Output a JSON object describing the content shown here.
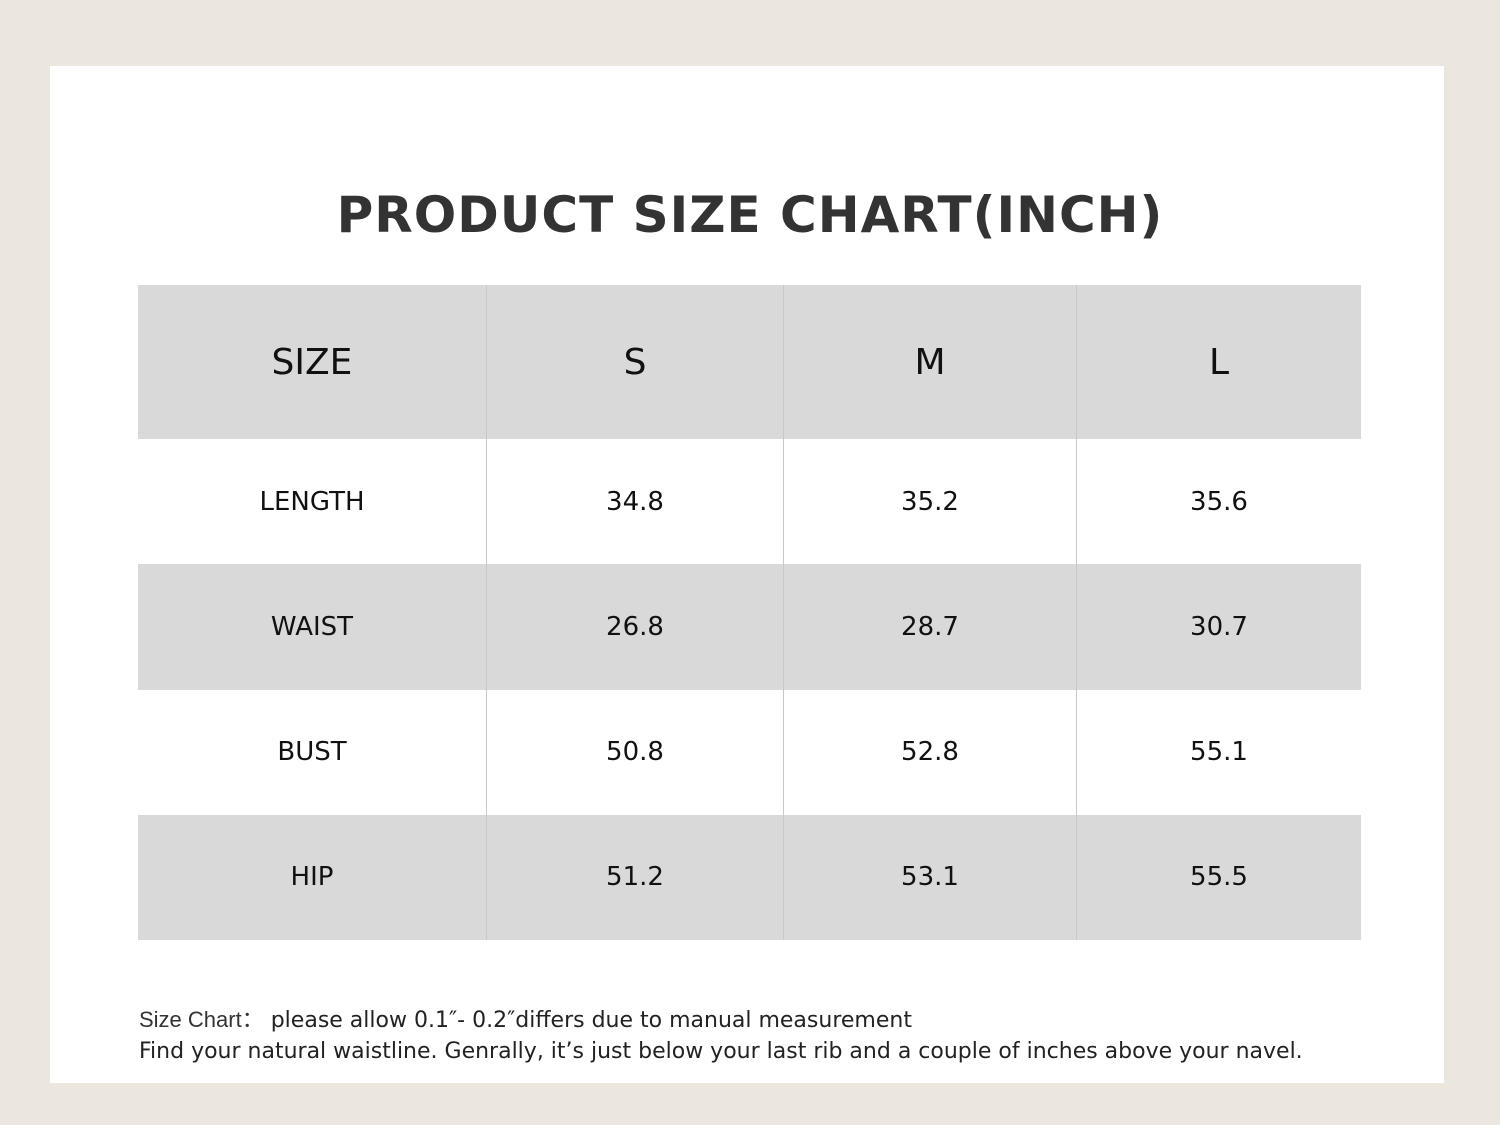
{
  "title": "PRODUCT SIZE CHART(INCH)",
  "table": {
    "header": [
      "SIZE",
      "S",
      "M",
      "L"
    ],
    "rows": [
      [
        "LENGTH",
        "34.8",
        "35.2",
        "35.6"
      ],
      [
        "WAIST",
        "26.8",
        "28.7",
        "30.7"
      ],
      [
        "BUST",
        "50.8",
        "52.8",
        "55.1"
      ],
      [
        "HIP",
        "51.2",
        "53.1",
        "55.5"
      ]
    ]
  },
  "notes": {
    "label": "Size Chart：",
    "line1": "please allow 0.1″- 0.2″differs due to manual measurement",
    "line2": "Find your natural waistline. Genrally, it’s just below your last rib and a couple of inches above your navel."
  }
}
